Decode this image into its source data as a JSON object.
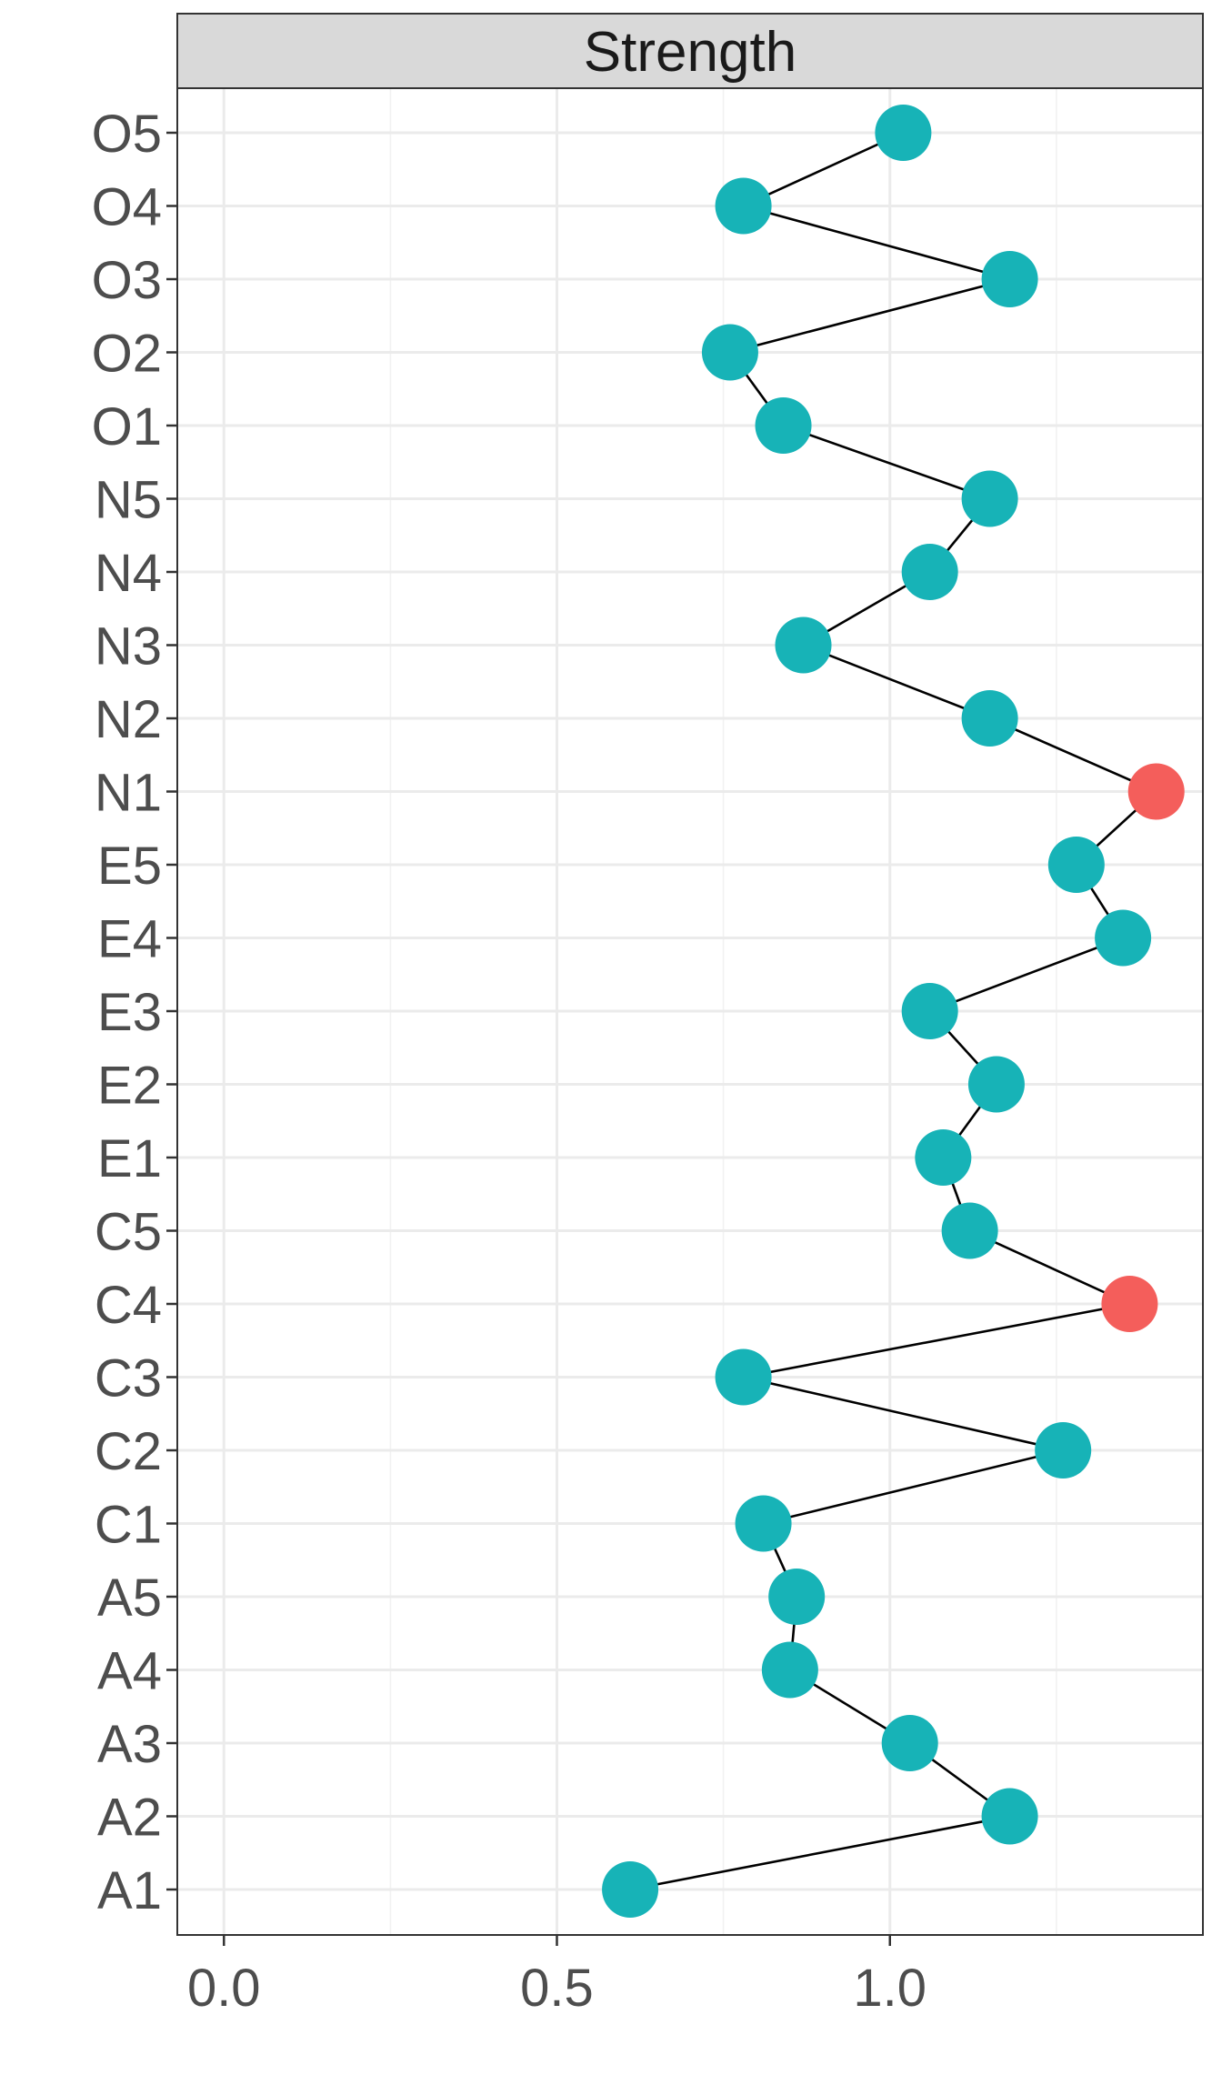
{
  "chart_data": {
    "type": "line",
    "facet_title": "Strength",
    "xlabel": "",
    "ylabel": "",
    "xlim": [
      -0.07,
      1.47
    ],
    "x_ticks": [
      0.0,
      0.5,
      1.0
    ],
    "x_tick_labels": [
      "0.0",
      "0.5",
      "1.0"
    ],
    "x_minor_ticks": [
      0.25,
      0.75,
      1.25
    ],
    "categories": [
      "A1",
      "A2",
      "A3",
      "A4",
      "A5",
      "C1",
      "C2",
      "C3",
      "C4",
      "C5",
      "E1",
      "E2",
      "E3",
      "E4",
      "E5",
      "N1",
      "N2",
      "N3",
      "N4",
      "N5",
      "O1",
      "O2",
      "O3",
      "O4",
      "O5"
    ],
    "values": [
      0.61,
      1.18,
      1.03,
      0.85,
      0.86,
      0.81,
      1.26,
      0.78,
      1.36,
      1.12,
      1.08,
      1.16,
      1.06,
      1.35,
      1.28,
      1.4,
      1.15,
      0.87,
      1.06,
      1.15,
      0.84,
      0.76,
      1.18,
      0.78,
      1.02
    ],
    "highlight": [
      false,
      false,
      false,
      false,
      false,
      false,
      false,
      false,
      true,
      false,
      false,
      false,
      false,
      false,
      false,
      true,
      false,
      false,
      false,
      false,
      false,
      false,
      false,
      false,
      false
    ],
    "grid": true,
    "legend": "none",
    "colors": {
      "point": "#17b3b7",
      "highlight": "#f45e5b",
      "line": "#000000",
      "strip": "#d9d9d9"
    }
  }
}
